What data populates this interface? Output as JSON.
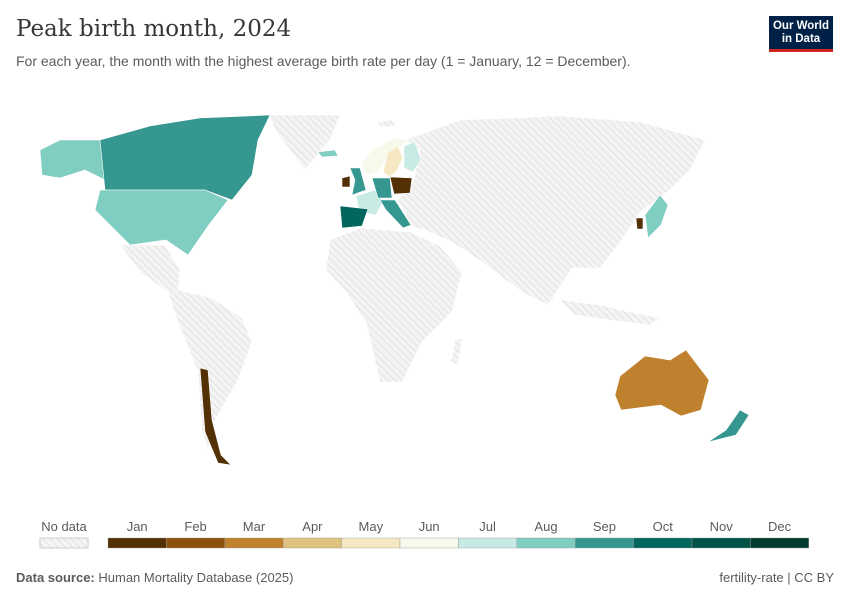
{
  "header": {
    "title": "Peak birth month, 2024",
    "subtitle": "For each year, the month with the highest average birth rate per day (1 = January, 12 = December).",
    "logo": "Our World in Data"
  },
  "legend": {
    "no_data_label": "No data",
    "no_data_color": "#e6e6e6",
    "months": [
      {
        "label": "Jan",
        "color": "#543005"
      },
      {
        "label": "Feb",
        "color": "#8c510a"
      },
      {
        "label": "Mar",
        "color": "#bf812d"
      },
      {
        "label": "Apr",
        "color": "#dfc27d"
      },
      {
        "label": "May",
        "color": "#f6e8c3"
      },
      {
        "label": "Jun",
        "color": "#f5faeb"
      },
      {
        "label": "Jul",
        "color": "#c7eae5"
      },
      {
        "label": "Aug",
        "color": "#80cdc1"
      },
      {
        "label": "Sep",
        "color": "#35978f"
      },
      {
        "label": "Oct",
        "color": "#01665e"
      },
      {
        "label": "Nov",
        "color": "#005346"
      },
      {
        "label": "Dec",
        "color": "#003c30"
      }
    ]
  },
  "map_data": {
    "Alaska": 8,
    "Canada": 9,
    "United States": 8,
    "Iceland": 8,
    "Norway": 6,
    "Sweden": 5,
    "Finland": 7,
    "United Kingdom": 9,
    "Ireland": 1,
    "France": 7,
    "Spain": 10,
    "Germany": 9,
    "Poland": 1,
    "Italy": 9,
    "Japan": 8,
    "South Korea": 1,
    "Australia": 3,
    "New Zealand": 9,
    "Chile": 1
  },
  "footer": {
    "source_label": "Data source:",
    "source": "Human Mortality Database (2025)",
    "right": "fertility-rate | CC BY"
  }
}
